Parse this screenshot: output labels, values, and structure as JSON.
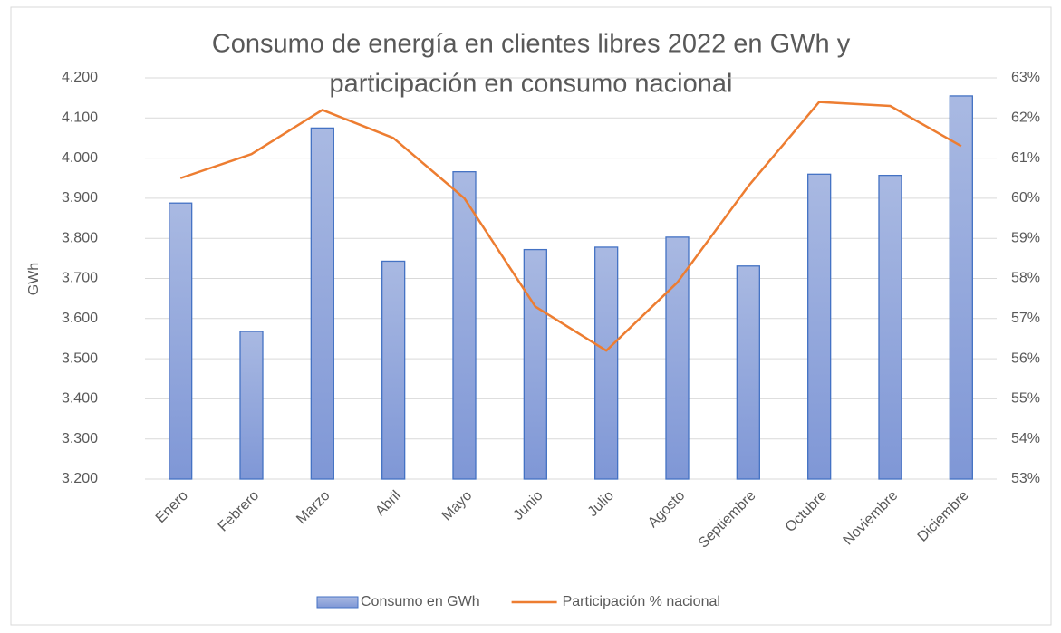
{
  "chart_data": {
    "type": "bar-line",
    "title": [
      "Consumo de energía en clientes libres 2022 en GWh y",
      "participación en consumo nacional"
    ],
    "y_label": "GWh",
    "categories": [
      "Enero",
      "Febrero",
      "Marzo",
      "Abril",
      "Mayo",
      "Junio",
      "Julio",
      "Agosto",
      "Septiembre",
      "Octubre",
      "Noviembre",
      "Diciembre"
    ],
    "series": [
      {
        "name": "Consumo en GWh",
        "type": "bar",
        "color": "#4472c4",
        "values": [
          3888,
          3568,
          4075,
          3743,
          3966,
          3772,
          3778,
          3803,
          3731,
          3960,
          3957,
          4155
        ]
      },
      {
        "name": "Participación % nacional",
        "type": "line",
        "axis": "y2",
        "color": "#ed7d31",
        "values": [
          60.5,
          61.1,
          62.2,
          61.5,
          60.0,
          57.3,
          56.2,
          57.9,
          60.3,
          62.4,
          62.3,
          61.3
        ]
      }
    ],
    "ylim": [
      3200,
      4200
    ],
    "yticks": [
      {
        "value": 3200,
        "label": "3.200"
      },
      {
        "value": 3300,
        "label": "3.300"
      },
      {
        "value": 3400,
        "label": "3.400"
      },
      {
        "value": 3500,
        "label": "3.500"
      },
      {
        "value": 3600,
        "label": "3.600"
      },
      {
        "value": 3700,
        "label": "3.700"
      },
      {
        "value": 3800,
        "label": "3.800"
      },
      {
        "value": 3900,
        "label": "3.900"
      },
      {
        "value": 4000,
        "label": "4.000"
      },
      {
        "value": 4100,
        "label": "4.100"
      },
      {
        "value": 4200,
        "label": "4.200"
      }
    ],
    "y2lim": [
      53,
      63
    ],
    "y2ticks": [
      {
        "value": 53,
        "label": "53%"
      },
      {
        "value": 54,
        "label": "54%"
      },
      {
        "value": 55,
        "label": "55%"
      },
      {
        "value": 56,
        "label": "56%"
      },
      {
        "value": 57,
        "label": "57%"
      },
      {
        "value": 58,
        "label": "58%"
      },
      {
        "value": 59,
        "label": "59%"
      },
      {
        "value": 60,
        "label": "60%"
      },
      {
        "value": 61,
        "label": "61%"
      },
      {
        "value": 62,
        "label": "62%"
      },
      {
        "value": 63,
        "label": "63%"
      }
    ],
    "grid": true,
    "legend": "bottom"
  }
}
